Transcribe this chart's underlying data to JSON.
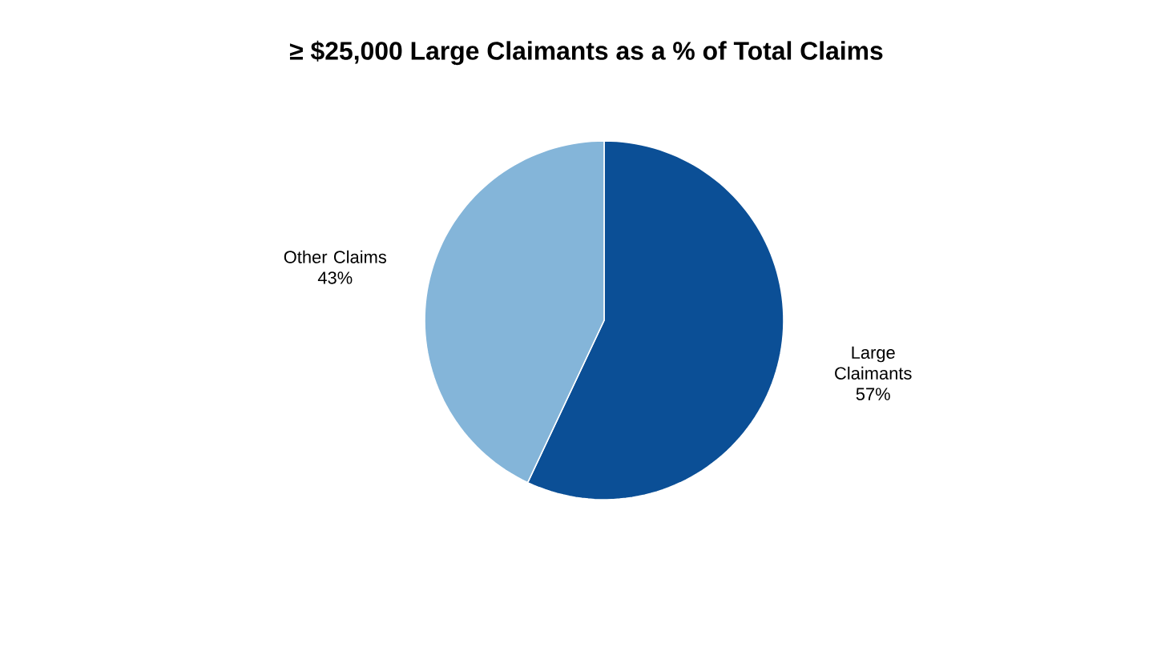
{
  "chart_data": {
    "type": "pie",
    "title": "≥ $25,000 Large Claimants as a % of Total Claims",
    "categories": [
      "Large Claimants",
      "Other Claims"
    ],
    "values": [
      57,
      43
    ],
    "colors": [
      "#0b4f96",
      "#84b5d9"
    ],
    "value_labels": [
      "57%",
      "43%"
    ]
  }
}
